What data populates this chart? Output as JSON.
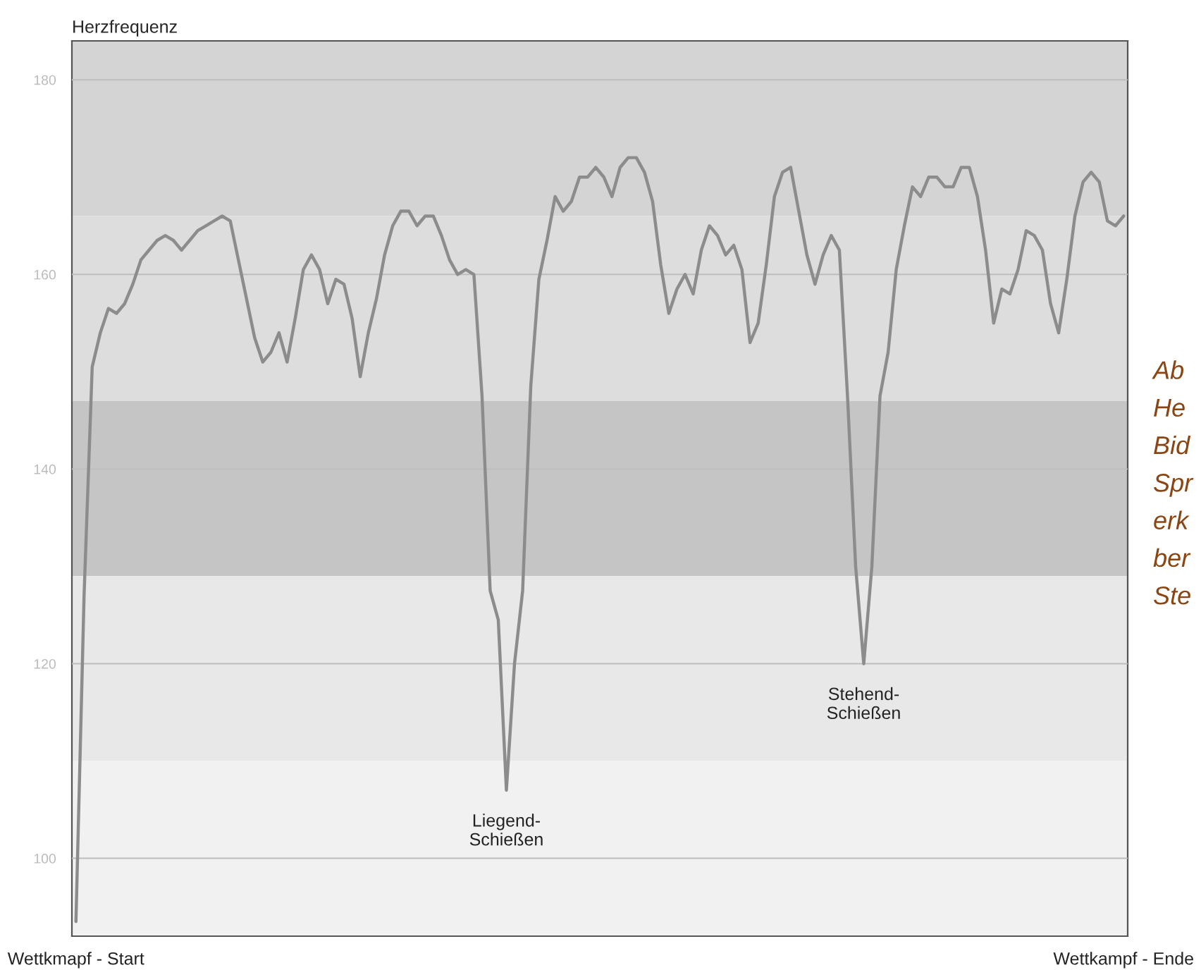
{
  "chart_data": {
    "type": "line",
    "ylabel": "Herzfrequenz",
    "categories": [
      "Wettkmapf - Start",
      null,
      null,
      null,
      null,
      null,
      null,
      null,
      null,
      null,
      null,
      null,
      null,
      null,
      null,
      null,
      null,
      null,
      null,
      null,
      null,
      null,
      null,
      null,
      null,
      null,
      null,
      null,
      null,
      null,
      null,
      null,
      null,
      null,
      null,
      null,
      null,
      null,
      null,
      null,
      null,
      null,
      null,
      null,
      null,
      null,
      null,
      null,
      null,
      null,
      null,
      null,
      null,
      null,
      null,
      null,
      null,
      null,
      null,
      null,
      null,
      null,
      null,
      null,
      null,
      null,
      null,
      null,
      null,
      null,
      null,
      null,
      null,
      null,
      null,
      null,
      null,
      null,
      null,
      null,
      null,
      null,
      null,
      null,
      null,
      null,
      null,
      null,
      null,
      null,
      null,
      null,
      null,
      null,
      null,
      null,
      null,
      null,
      null,
      null,
      null,
      null,
      null,
      null,
      null,
      null,
      null,
      null,
      null,
      null,
      null,
      null,
      null,
      null,
      null,
      null,
      null,
      null,
      null,
      null,
      null,
      null,
      null,
      null,
      null,
      null,
      null,
      null,
      null,
      "Wettkampf - Ende"
    ],
    "series": [
      {
        "color": "#8c8c8c",
        "values": [
          93.5,
          127,
          150.5,
          154,
          156.5,
          156,
          157,
          159,
          161.5,
          162.5,
          163.5,
          164,
          163.5,
          162.5,
          163.5,
          164.5,
          165,
          165.5,
          166,
          165.5,
          161.5,
          157.5,
          153.5,
          151,
          152,
          154,
          151,
          155.5,
          160.5,
          162,
          160.5,
          157,
          159.5,
          159,
          155.5,
          149.5,
          154,
          157.5,
          162,
          165,
          166.5,
          166.5,
          165,
          166,
          166,
          164,
          161.5,
          160,
          160.5,
          160,
          147.5,
          127.5,
          124.5,
          107,
          120,
          127.5,
          148.5,
          159.5,
          163.5,
          168,
          166.5,
          167.5,
          170,
          170,
          171,
          170,
          168,
          171,
          172,
          172,
          170.5,
          167.5,
          161,
          156,
          158.5,
          160,
          158,
          162.5,
          165,
          164,
          162,
          163,
          160.5,
          153,
          155,
          161,
          168,
          170.5,
          171,
          166.5,
          162,
          159,
          162,
          164,
          162.5,
          147.5,
          130,
          120,
          130,
          147.5,
          152,
          160.5,
          165,
          169,
          168,
          170,
          170,
          169,
          169,
          171,
          171,
          168,
          162.5,
          155,
          158.5,
          158,
          160.5,
          164.5,
          164,
          162.5,
          157,
          154,
          159.5,
          166,
          169.5,
          170.5,
          169.5,
          165.5,
          165,
          166
        ]
      }
    ],
    "ylim": [
      92,
      184
    ],
    "yticks": [
      100,
      120,
      140,
      160,
      180
    ],
    "grid": "y",
    "marker": "none",
    "line_style": "solid",
    "bands": [
      {
        "axis": "y",
        "from": 166,
        "to": 184,
        "color": "#d4d4d4"
      },
      {
        "axis": "y",
        "from": 147,
        "to": 166,
        "color": "#dddddd"
      },
      {
        "axis": "y",
        "from": 129,
        "to": 147,
        "color": "#c5c5c5"
      },
      {
        "axis": "y",
        "from": 110,
        "to": 129,
        "color": "#e8e8e8"
      },
      {
        "axis": "y",
        "from": 92,
        "to": 110,
        "color": "#f1f1f1"
      }
    ],
    "annotations": [
      "Liegend-\nSchießen",
      "Stehend-\nSchießen",
      "Ab\nHe\nBid\nSpr\nerk\nber\nSte"
    ]
  }
}
